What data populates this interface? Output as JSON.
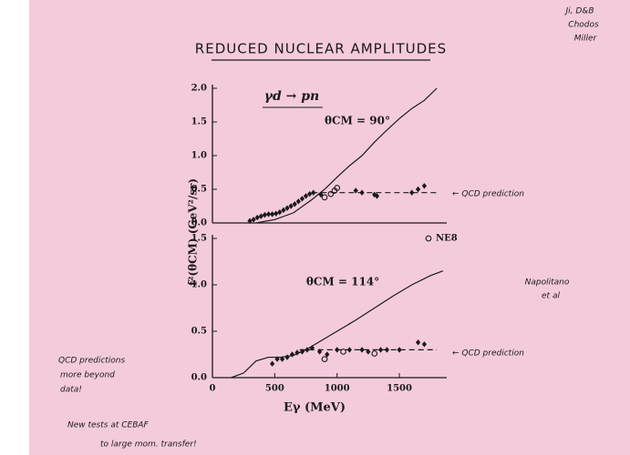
{
  "title": "REDUCED NUCLEAR AMPLITUDES",
  "reaction": "γd → pn",
  "y_label": "f²(θCM) (GeV²/sr)",
  "x_label": "Eγ (MeV)",
  "notes": {
    "authors": [
      "Ji, D&B",
      "Chodos",
      "Miller"
    ],
    "qcd_arrow_top": "← QCD prediction",
    "qcd_arrow_bottom": "← QCD prediction",
    "experiment": [
      "Napolitano",
      "et al"
    ],
    "left": [
      "QCD predictions",
      "more beyond",
      "data!"
    ],
    "bottom": [
      "New tests at CEBAF",
      "to large mom. transfer!"
    ]
  },
  "chart_data": [
    {
      "type": "scatter",
      "annotation": "θCM = 90°",
      "xlim": [
        0,
        1880
      ],
      "ylim": [
        0,
        2.0
      ],
      "yticks": [
        {
          "value": 0,
          "label": "0.0"
        },
        {
          "value": 0.5,
          "label": "0.5"
        },
        {
          "value": 1.0,
          "label": "1.0"
        },
        {
          "value": 1.5,
          "label": "1.5"
        },
        {
          "value": 2.0,
          "label": "2.0"
        }
      ],
      "series": [
        {
          "style": "filled",
          "color": "#1a1a1a",
          "x": [
            300,
            330,
            360,
            390,
            420,
            450,
            480,
            510,
            540,
            570,
            600,
            630,
            660,
            690,
            720,
            750,
            780,
            810,
            870,
            1150,
            1200,
            1300,
            1320,
            1600,
            1650,
            1700
          ],
          "values": [
            0.03,
            0.05,
            0.08,
            0.1,
            0.12,
            0.13,
            0.13,
            0.14,
            0.16,
            0.19,
            0.22,
            0.25,
            0.28,
            0.32,
            0.36,
            0.4,
            0.43,
            0.45,
            0.42,
            0.48,
            0.45,
            0.42,
            0.4,
            0.45,
            0.5,
            0.55
          ]
        },
        {
          "style": "open",
          "name": "NE8",
          "color": "#1a1a1a",
          "x": [
            900,
            950,
            980,
            1000
          ],
          "values": [
            0.38,
            0.43,
            0.48,
            0.52
          ]
        },
        {
          "style": "curve",
          "color": "#1a1a1a",
          "x": [
            350,
            500,
            650,
            800,
            900,
            1000,
            1100,
            1200,
            1300,
            1400,
            1500,
            1600,
            1700,
            1800
          ],
          "values": [
            0,
            0.05,
            0.15,
            0.35,
            0.5,
            0.68,
            0.85,
            1.0,
            1.2,
            1.38,
            1.55,
            1.7,
            1.82,
            2.0
          ]
        },
        {
          "style": "dashed",
          "color": "#1a1a1a",
          "x": [
            800,
            1800
          ],
          "values": [
            0.45,
            0.45
          ]
        }
      ]
    },
    {
      "type": "scatter",
      "annotation": "θCM = 114°",
      "xlim": [
        0,
        1880
      ],
      "ylim": [
        0,
        1.5
      ],
      "xticks": [
        0,
        500,
        1000,
        1500
      ],
      "yticks": [
        {
          "value": 0,
          "label": "0.0"
        },
        {
          "value": 0.5,
          "label": "0.5"
        },
        {
          "value": 1.0,
          "label": "1.0"
        },
        {
          "value": 1.5,
          "label": "1.5"
        }
      ],
      "series": [
        {
          "style": "filled",
          "color": "#1a1a1a",
          "x": [
            480,
            520,
            560,
            600,
            640,
            680,
            720,
            760,
            800,
            860,
            920,
            1000,
            1100,
            1200,
            1250,
            1350,
            1400,
            1500,
            1650,
            1700
          ],
          "values": [
            0.15,
            0.2,
            0.2,
            0.22,
            0.25,
            0.27,
            0.28,
            0.3,
            0.32,
            0.28,
            0.25,
            0.3,
            0.3,
            0.3,
            0.28,
            0.3,
            0.3,
            0.3,
            0.38,
            0.36
          ]
        },
        {
          "style": "open",
          "color": "#1a1a1a",
          "x": [
            900,
            1050,
            1300
          ],
          "values": [
            0.2,
            0.28,
            0.26
          ]
        },
        {
          "style": "curve",
          "color": "#1a1a1a",
          "x": [
            150,
            250,
            350,
            450,
            550,
            650,
            750,
            850,
            1000,
            1150,
            1300,
            1450,
            1600,
            1750,
            1850
          ],
          "values": [
            0,
            0.05,
            0.18,
            0.22,
            0.22,
            0.24,
            0.3,
            0.38,
            0.5,
            0.62,
            0.75,
            0.88,
            1.0,
            1.1,
            1.15
          ]
        },
        {
          "style": "dashed",
          "color": "#1a1a1a",
          "x": [
            700,
            1800
          ],
          "values": [
            0.3,
            0.3
          ]
        }
      ]
    }
  ]
}
